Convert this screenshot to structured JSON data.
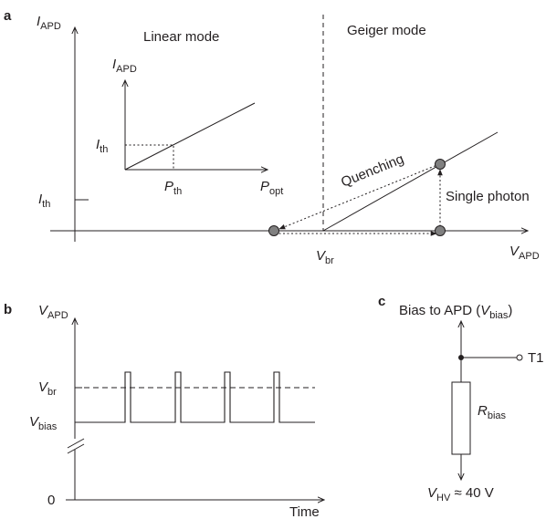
{
  "panels": {
    "a": {
      "letter": "a",
      "y_axis": {
        "symbol": "I",
        "sub": "APD"
      },
      "x_axis": {
        "symbol": "V",
        "sub": "APD"
      },
      "linear_mode_label": "Linear mode",
      "geiger_mode_label": "Geiger mode",
      "ith_label": {
        "symbol": "I",
        "sub": "th"
      },
      "vbr_label": {
        "symbol": "V",
        "sub": "br"
      },
      "quenching_label": "Quenching",
      "single_photon_label": "Single photon",
      "inset": {
        "y_axis": {
          "symbol": "I",
          "sub": "APD"
        },
        "x_axis": {
          "symbol": "P",
          "sub": "opt"
        },
        "ith_label": {
          "symbol": "I",
          "sub": "th"
        },
        "pth_label": {
          "symbol": "P",
          "sub": "th"
        }
      }
    },
    "b": {
      "letter": "b",
      "y_axis": {
        "symbol": "V",
        "sub": "APD"
      },
      "x_axis_label": "Time",
      "vbr_label": {
        "symbol": "V",
        "sub": "br"
      },
      "vbias_label": {
        "symbol": "V",
        "sub": "bias"
      },
      "zero_label": "0",
      "pulse_count": 4
    },
    "c": {
      "letter": "c",
      "title_prefix": "Bias to APD (",
      "title_symbol": {
        "symbol": "V",
        "sub": "bias"
      },
      "title_suffix": ")",
      "terminal_label": "T1",
      "resistor_label": {
        "symbol": "R",
        "sub": "bias"
      },
      "hv_label": {
        "symbol": "V",
        "sub": "HV"
      },
      "hv_value": " ≈ 40 V"
    }
  },
  "colors": {
    "ink": "#231f20",
    "marker_fill": "#808080"
  }
}
